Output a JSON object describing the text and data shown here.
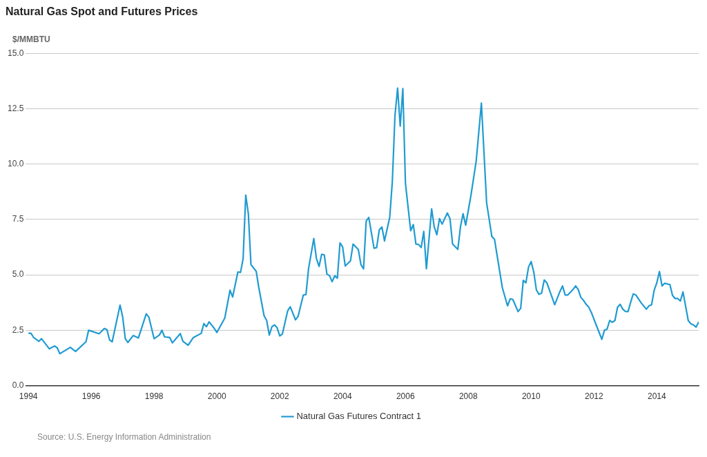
{
  "chart_data": {
    "type": "line",
    "title": "Natural Gas Spot and Futures Prices",
    "ylabel": "$/MMBTU",
    "annotations": [
      "Source: U.S. Energy Information Administration"
    ],
    "xlim": [
      "1993-12",
      "2015-05"
    ],
    "xticks": [
      "1994",
      "1996",
      "1998",
      "2000",
      "2002",
      "2004",
      "2006",
      "2008",
      "2010",
      "2012",
      "2014"
    ],
    "ylim": [
      0,
      15
    ],
    "yticks": [
      {
        "value": 0,
        "label": "0.0"
      },
      2.5,
      {
        "value": 5,
        "label": "5.0"
      },
      7.5,
      {
        "value": 10,
        "label": "10.0"
      },
      12.5,
      {
        "value": 15,
        "label": "15.0"
      }
    ],
    "grid": "y",
    "legend": "bottom",
    "marker": "none",
    "line_style": "solid",
    "series": [
      {
        "name": "Natural Gas Futures Contract 1",
        "color": "#1f9bd1",
        "x": [
          "1994-01",
          "1994-02",
          "1994-03",
          "1994-05",
          "1994-06",
          "1994-09",
          "1994-11",
          "1994-12",
          "1995-01",
          "1995-05",
          "1995-07",
          "1995-11",
          "1995-12",
          "1996-04",
          "1996-06",
          "1996-07",
          "1996-08",
          "1996-09",
          "1996-12",
          "1997-01",
          "1997-02",
          "1997-03",
          "1997-05",
          "1997-07",
          "1997-10",
          "1997-11",
          "1998-01",
          "1998-03",
          "1998-04",
          "1998-05",
          "1998-07",
          "1998-08",
          "1998-11",
          "1998-12",
          "1999-02",
          "1999-04",
          "1999-07",
          "1999-08",
          "1999-09",
          "1999-10",
          "1999-12",
          "2000-01",
          "2000-04",
          "2000-06",
          "2000-07",
          "2000-09",
          "2000-10",
          "2000-11",
          "2000-12",
          "2001-01",
          "2001-02",
          "2001-04",
          "2001-05",
          "2001-07",
          "2001-08",
          "2001-09",
          "2001-10",
          "2001-11",
          "2001-12",
          "2002-01",
          "2002-02",
          "2002-04",
          "2002-05",
          "2002-07",
          "2002-08",
          "2002-10",
          "2002-11",
          "2002-12",
          "2003-02",
          "2003-03",
          "2003-04",
          "2003-05",
          "2003-06",
          "2003-07",
          "2003-08",
          "2003-09",
          "2003-10",
          "2003-11",
          "2003-12",
          "2004-01",
          "2004-02",
          "2004-04",
          "2004-05",
          "2004-07",
          "2004-08",
          "2004-09",
          "2004-10",
          "2004-11",
          "2005-01",
          "2005-02",
          "2005-03",
          "2005-04",
          "2005-05",
          "2005-07",
          "2005-08",
          "2005-09",
          "2005-10",
          "2005-11",
          "2005-12",
          "2006-01",
          "2006-03",
          "2006-04",
          "2006-05",
          "2006-06",
          "2006-07",
          "2006-08",
          "2006-09",
          "2006-11",
          "2006-12",
          "2007-01",
          "2007-02",
          "2007-03",
          "2007-05",
          "2007-06",
          "2007-07",
          "2007-09",
          "2007-10",
          "2007-11",
          "2007-12",
          "2008-02",
          "2008-04",
          "2008-06",
          "2008-08",
          "2008-10",
          "2008-11",
          "2009-02",
          "2009-04",
          "2009-05",
          "2009-06",
          "2009-08",
          "2009-09",
          "2009-10",
          "2009-11",
          "2009-12",
          "2010-01",
          "2010-02",
          "2010-03",
          "2010-04",
          "2010-05",
          "2010-06",
          "2010-07",
          "2010-10",
          "2010-12",
          "2011-01",
          "2011-02",
          "2011-03",
          "2011-05",
          "2011-06",
          "2011-07",
          "2011-08",
          "2011-09",
          "2011-10",
          "2011-11",
          "2011-12",
          "2012-02",
          "2012-04",
          "2012-05",
          "2012-06",
          "2012-07",
          "2012-08",
          "2012-09",
          "2012-10",
          "2012-11",
          "2012-12",
          "2013-01",
          "2013-02",
          "2013-03",
          "2013-04",
          "2013-05",
          "2013-07",
          "2013-09",
          "2013-10",
          "2013-11",
          "2013-12",
          "2014-01",
          "2014-02",
          "2014-03",
          "2014-04",
          "2014-06",
          "2014-07",
          "2014-08",
          "2014-09",
          "2014-10",
          "2014-11",
          "2015-01",
          "2015-02",
          "2015-03",
          "2015-04",
          "2015-05"
        ],
        "values": [
          2.37,
          2.36,
          2.17,
          2.0,
          2.12,
          1.66,
          1.79,
          1.71,
          1.44,
          1.73,
          1.54,
          1.98,
          2.5,
          2.34,
          2.58,
          2.53,
          2.06,
          1.98,
          3.63,
          3.1,
          2.12,
          1.95,
          2.26,
          2.15,
          3.24,
          3.09,
          2.12,
          2.28,
          2.5,
          2.2,
          2.17,
          1.93,
          2.35,
          2.0,
          1.82,
          2.17,
          2.36,
          2.8,
          2.66,
          2.88,
          2.58,
          2.4,
          3.05,
          4.31,
          4.0,
          5.13,
          5.11,
          5.73,
          8.6,
          7.76,
          5.46,
          5.16,
          4.42,
          3.16,
          2.94,
          2.28,
          2.66,
          2.74,
          2.61,
          2.24,
          2.33,
          3.37,
          3.56,
          2.97,
          3.13,
          4.09,
          4.11,
          5.29,
          6.64,
          5.73,
          5.38,
          5.93,
          5.9,
          5.04,
          4.96,
          4.69,
          4.96,
          4.85,
          6.44,
          6.26,
          5.4,
          5.63,
          6.39,
          6.14,
          5.46,
          5.27,
          7.43,
          7.59,
          6.2,
          6.23,
          7.03,
          7.16,
          6.53,
          7.6,
          9.24,
          12.2,
          13.43,
          11.71,
          13.41,
          9.13,
          6.99,
          7.27,
          6.39,
          6.37,
          6.23,
          6.96,
          5.27,
          7.98,
          7.16,
          6.81,
          7.54,
          7.29,
          7.79,
          7.54,
          6.39,
          6.15,
          7.16,
          7.76,
          7.24,
          8.58,
          10.12,
          12.75,
          8.25,
          6.73,
          6.61,
          4.42,
          3.6,
          3.92,
          3.89,
          3.34,
          3.49,
          4.75,
          4.64,
          5.35,
          5.6,
          5.13,
          4.32,
          4.12,
          4.18,
          4.77,
          4.64,
          3.65,
          4.25,
          4.5,
          4.09,
          4.09,
          4.34,
          4.5,
          4.33,
          3.98,
          3.85,
          3.67,
          3.54,
          3.3,
          2.69,
          2.09,
          2.5,
          2.55,
          2.94,
          2.86,
          2.94,
          3.54,
          3.67,
          3.45,
          3.35,
          3.34,
          3.76,
          4.14,
          4.09,
          3.74,
          3.45,
          3.6,
          3.65,
          4.31,
          4.64,
          5.15,
          4.5,
          4.62,
          4.56,
          4.07,
          3.93,
          3.93,
          3.82,
          4.23,
          2.94,
          2.79,
          2.74,
          2.64,
          2.88
        ]
      }
    ]
  }
}
